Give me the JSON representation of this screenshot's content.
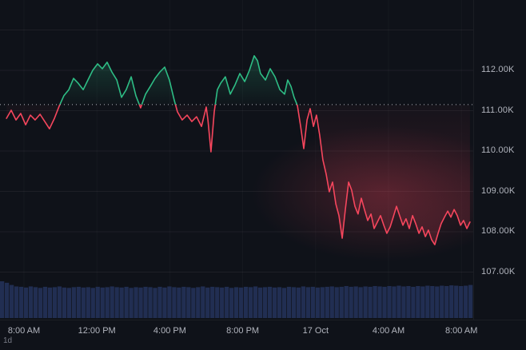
{
  "bottom_left_label": "1d",
  "chart_data": {
    "type": "area",
    "title": "",
    "xlabel": "",
    "ylabel": "",
    "baseline_price": 111.15,
    "ylim": [
      105.82,
      113.74
    ],
    "xlim_hours": [
      -1.3,
      24.65
    ],
    "grid": true,
    "y_axis": {
      "unit": "K",
      "ticks": [
        {
          "value": 112,
          "label": "112.00K"
        },
        {
          "value": 111,
          "label": "111.00K"
        },
        {
          "value": 110,
          "label": "110.00K"
        },
        {
          "value": 109,
          "label": "109.00K"
        },
        {
          "value": 108,
          "label": "108.00K"
        },
        {
          "value": 107,
          "label": "107.00K"
        }
      ],
      "gridline_values": [
        113,
        112,
        111,
        110,
        109,
        108,
        107
      ]
    },
    "x_axis": {
      "ticks": [
        {
          "t": 0,
          "label": "8:00 AM"
        },
        {
          "t": 4,
          "label": "12:00 PM"
        },
        {
          "t": 8,
          "label": "4:00 PM"
        },
        {
          "t": 12,
          "label": "8:00 PM"
        },
        {
          "t": 16,
          "label": "17 Oct"
        },
        {
          "t": 20,
          "label": "4:00 AM"
        },
        {
          "t": 24,
          "label": "8:00 AM"
        }
      ]
    },
    "series": [
      {
        "name": "price",
        "points": [
          [
            -0.96,
            110.81
          ],
          [
            -0.7,
            111.01
          ],
          [
            -0.44,
            110.77
          ],
          [
            -0.18,
            110.93
          ],
          [
            0.09,
            110.65
          ],
          [
            0.35,
            110.89
          ],
          [
            0.61,
            110.77
          ],
          [
            0.88,
            110.91
          ],
          [
            1.14,
            110.73
          ],
          [
            1.4,
            110.55
          ],
          [
            1.67,
            110.81
          ],
          [
            1.93,
            111.11
          ],
          [
            2.19,
            111.37
          ],
          [
            2.46,
            111.52
          ],
          [
            2.72,
            111.8
          ],
          [
            2.98,
            111.68
          ],
          [
            3.25,
            111.52
          ],
          [
            3.51,
            111.76
          ],
          [
            3.77,
            112.0
          ],
          [
            4.04,
            112.16
          ],
          [
            4.3,
            112.04
          ],
          [
            4.56,
            112.2
          ],
          [
            4.82,
            111.96
          ],
          [
            5.09,
            111.76
          ],
          [
            5.35,
            111.33
          ],
          [
            5.61,
            111.52
          ],
          [
            5.88,
            111.84
          ],
          [
            6.14,
            111.37
          ],
          [
            6.4,
            111.07
          ],
          [
            6.67,
            111.41
          ],
          [
            6.93,
            111.6
          ],
          [
            7.19,
            111.8
          ],
          [
            7.46,
            111.96
          ],
          [
            7.72,
            112.08
          ],
          [
            7.98,
            111.76
          ],
          [
            8.25,
            111.25
          ],
          [
            8.42,
            110.97
          ],
          [
            8.68,
            110.77
          ],
          [
            8.95,
            110.89
          ],
          [
            9.21,
            110.73
          ],
          [
            9.47,
            110.85
          ],
          [
            9.74,
            110.61
          ],
          [
            10.0,
            111.09
          ],
          [
            10.09,
            110.77
          ],
          [
            10.26,
            109.98
          ],
          [
            10.44,
            110.97
          ],
          [
            10.61,
            111.52
          ],
          [
            10.79,
            111.68
          ],
          [
            11.05,
            111.84
          ],
          [
            11.32,
            111.41
          ],
          [
            11.58,
            111.64
          ],
          [
            11.84,
            111.92
          ],
          [
            12.11,
            111.72
          ],
          [
            12.37,
            112.0
          ],
          [
            12.63,
            112.36
          ],
          [
            12.81,
            112.24
          ],
          [
            12.98,
            111.92
          ],
          [
            13.25,
            111.76
          ],
          [
            13.51,
            112.04
          ],
          [
            13.77,
            111.84
          ],
          [
            14.04,
            111.52
          ],
          [
            14.3,
            111.41
          ],
          [
            14.47,
            111.76
          ],
          [
            14.65,
            111.6
          ],
          [
            14.82,
            111.33
          ],
          [
            15.0,
            111.13
          ],
          [
            15.18,
            110.61
          ],
          [
            15.35,
            110.06
          ],
          [
            15.53,
            110.77
          ],
          [
            15.7,
            111.05
          ],
          [
            15.88,
            110.61
          ],
          [
            16.05,
            110.89
          ],
          [
            16.23,
            110.38
          ],
          [
            16.4,
            109.78
          ],
          [
            16.58,
            109.43
          ],
          [
            16.75,
            108.99
          ],
          [
            16.93,
            109.23
          ],
          [
            17.11,
            108.69
          ],
          [
            17.28,
            108.4
          ],
          [
            17.46,
            107.84
          ],
          [
            17.63,
            108.55
          ],
          [
            17.81,
            109.23
          ],
          [
            17.98,
            109.03
          ],
          [
            18.16,
            108.63
          ],
          [
            18.33,
            108.44
          ],
          [
            18.51,
            108.83
          ],
          [
            18.68,
            108.55
          ],
          [
            18.86,
            108.28
          ],
          [
            19.04,
            108.44
          ],
          [
            19.21,
            108.08
          ],
          [
            19.39,
            108.24
          ],
          [
            19.56,
            108.4
          ],
          [
            19.74,
            108.16
          ],
          [
            19.91,
            107.96
          ],
          [
            20.09,
            108.12
          ],
          [
            20.26,
            108.36
          ],
          [
            20.44,
            108.63
          ],
          [
            20.61,
            108.4
          ],
          [
            20.79,
            108.16
          ],
          [
            20.96,
            108.32
          ],
          [
            21.14,
            108.08
          ],
          [
            21.32,
            108.4
          ],
          [
            21.49,
            108.2
          ],
          [
            21.67,
            107.96
          ],
          [
            21.84,
            108.12
          ],
          [
            22.02,
            107.88
          ],
          [
            22.19,
            108.04
          ],
          [
            22.37,
            107.8
          ],
          [
            22.54,
            107.68
          ],
          [
            22.72,
            107.96
          ],
          [
            22.89,
            108.2
          ],
          [
            23.07,
            108.36
          ],
          [
            23.25,
            108.51
          ],
          [
            23.42,
            108.36
          ],
          [
            23.6,
            108.55
          ],
          [
            23.77,
            108.4
          ],
          [
            23.95,
            108.16
          ],
          [
            24.12,
            108.28
          ],
          [
            24.3,
            108.08
          ],
          [
            24.47,
            108.24
          ]
        ]
      }
    ],
    "volume": {
      "relative_heights": [
        1.0,
        0.96,
        0.9,
        0.86,
        0.85,
        0.83,
        0.86,
        0.84,
        0.82,
        0.85,
        0.83,
        0.84,
        0.86,
        0.83,
        0.82,
        0.84,
        0.85,
        0.83,
        0.84,
        0.82,
        0.85,
        0.83,
        0.84,
        0.86,
        0.84,
        0.83,
        0.85,
        0.82,
        0.84,
        0.83,
        0.85,
        0.84,
        0.82,
        0.85,
        0.83,
        0.86,
        0.84,
        0.83,
        0.85,
        0.84,
        0.82,
        0.84,
        0.86,
        0.83,
        0.85,
        0.84,
        0.83,
        0.85,
        0.82,
        0.84,
        0.83,
        0.85,
        0.84,
        0.86,
        0.83,
        0.84,
        0.85,
        0.83,
        0.84,
        0.82,
        0.85,
        0.84,
        0.83,
        0.86,
        0.84,
        0.85,
        0.83,
        0.84,
        0.85,
        0.86,
        0.84,
        0.85,
        0.87,
        0.85,
        0.86,
        0.84,
        0.86,
        0.85,
        0.87,
        0.86,
        0.85,
        0.87,
        0.86,
        0.88,
        0.86,
        0.87,
        0.85,
        0.87,
        0.86,
        0.88,
        0.87,
        0.86,
        0.88,
        0.87,
        0.89,
        0.88,
        0.87,
        0.88,
        0.9
      ]
    },
    "colors": {
      "up": "#2ebd85",
      "down": "#f6465d",
      "baseline": "#b2b5be",
      "volume": "#212e52",
      "grid": "rgba(255,255,255,0.06)",
      "grid_vertical": "rgba(255,255,255,0.03)",
      "axis_text": "#b2b5be",
      "bg": "#0f1219"
    }
  }
}
